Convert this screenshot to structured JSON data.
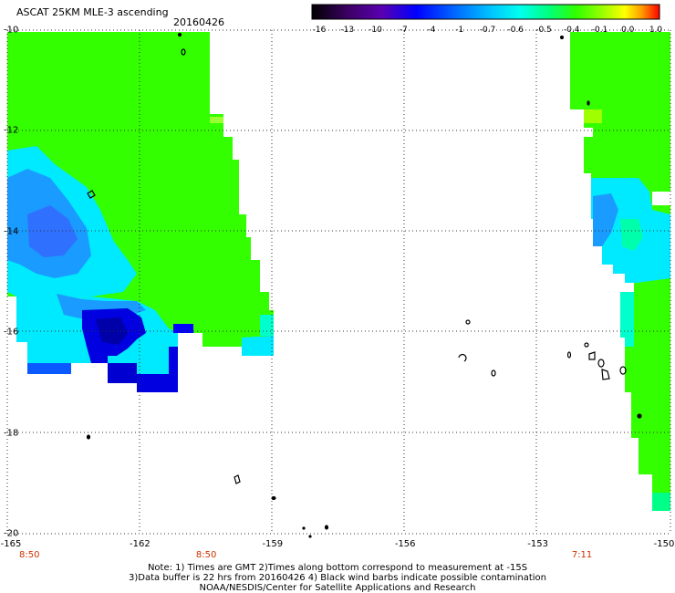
{
  "header": {
    "title": "ASCAT 25KM MLE-3 ascending",
    "date": "20160426"
  },
  "colorbar": {
    "labels": [
      "-16",
      "-13",
      "-10",
      "-7",
      "-4",
      "-1",
      "-0.7",
      "-0.6",
      "-0.5",
      "-0.4",
      "-0.1",
      "0.0",
      "1.0"
    ],
    "colors": [
      "#000000",
      "#3a0060",
      "#5a00b0",
      "#0000ff",
      "#0070ff",
      "#00c8ff",
      "#00ffee",
      "#00ff80",
      "#30ff00",
      "#a0ff00",
      "#ffff00",
      "#ff9900",
      "#ff0000"
    ]
  },
  "axes": {
    "x_ticks": [
      "-165",
      "-162",
      "-159",
      "-156",
      "-153",
      "-150"
    ],
    "y_ticks": [
      "-10",
      "-12",
      "-14",
      "-16",
      "-18",
      "-20"
    ],
    "lon_range": [
      -165,
      -150
    ],
    "lat_range": [
      -20,
      -10
    ],
    "grid": true
  },
  "pass_times": [
    {
      "lon": -164.5,
      "label": "8:50"
    },
    {
      "lon": -160.5,
      "label": "8:50"
    },
    {
      "lon": -152.0,
      "label": "7:11"
    }
  ],
  "footer": {
    "line1": "Note: 1) Times are GMT 2)Times along bottom correspond to measurement at -15S",
    "line2": "3)Data buffer is 22 hrs from 20160426 4) Black wind barbs indicate possible contamination",
    "line3": "NOAA/NESDIS/Center for Satellite Applications and Research"
  }
}
